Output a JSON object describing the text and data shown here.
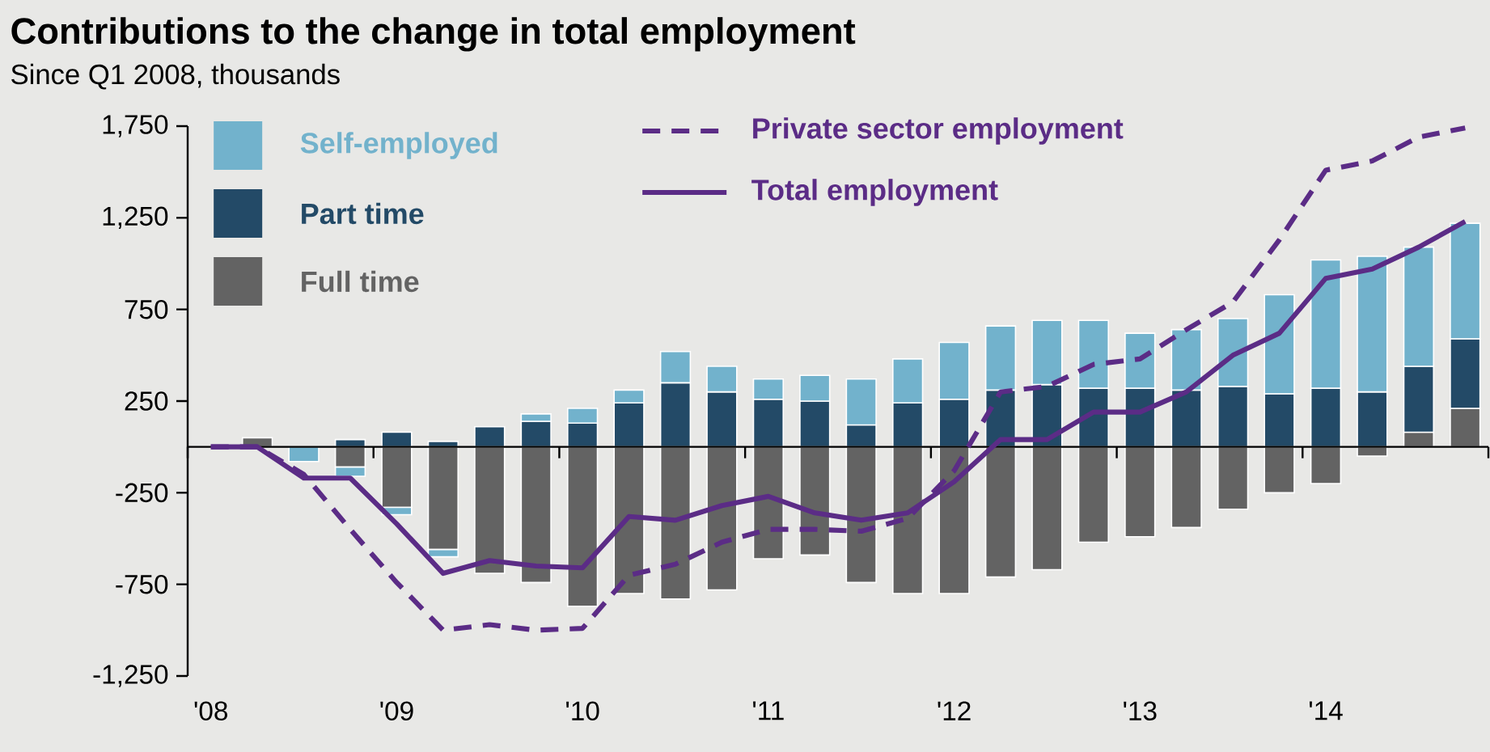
{
  "chart_data": {
    "type": "bar",
    "title": "Contributions to the change in total employment",
    "subtitle": "Since Q1 2008, thousands",
    "stacked": true,
    "legend": "top left",
    "categories": [
      "'08",
      null,
      null,
      null,
      "'09",
      null,
      null,
      null,
      "'10",
      null,
      null,
      null,
      "'11",
      null,
      null,
      null,
      "'12",
      null,
      null,
      null,
      "'13",
      null,
      null,
      null,
      "'14",
      null,
      null,
      null
    ],
    "ylim": [
      -1250,
      1750
    ],
    "yticks": [
      {
        "value": 1750,
        "label": "1,750"
      },
      {
        "value": 1250,
        "label": "1,250"
      },
      750,
      250,
      -250,
      -750,
      {
        "value": -1250,
        "label": "-1,250"
      }
    ],
    "series": [
      {
        "name": "Full time",
        "color": "#636363",
        "values": [
          0,
          50,
          0,
          -110,
          -330,
          -560,
          -690,
          -740,
          -870,
          -800,
          -830,
          -780,
          -610,
          -590,
          -740,
          -800,
          -800,
          -710,
          -670,
          -520,
          -490,
          -440,
          -340,
          -250,
          -200,
          -50,
          80,
          210
        ]
      },
      {
        "name": "Part time",
        "color": "#234a67",
        "values": [
          0,
          0,
          0,
          40,
          80,
          30,
          110,
          140,
          130,
          240,
          350,
          300,
          260,
          250,
          120,
          240,
          260,
          310,
          340,
          320,
          320,
          310,
          330,
          290,
          320,
          300,
          360,
          380
        ]
      },
      {
        "name": "Self-employed",
        "color": "#72b2cc",
        "values": [
          0,
          0,
          -80,
          -50,
          -40,
          -40,
          0,
          40,
          80,
          70,
          170,
          140,
          110,
          140,
          250,
          240,
          310,
          350,
          350,
          370,
          300,
          330,
          370,
          540,
          700,
          740,
          650,
          630
        ]
      },
      {
        "name": "Private sector employment",
        "type": "line",
        "line_style": "dashed",
        "color": "#5b2c86",
        "values": [
          0,
          0,
          -150,
          -450,
          -740,
          -1000,
          -970,
          -1000,
          -990,
          -700,
          -640,
          -520,
          -450,
          -450,
          -460,
          -390,
          -130,
          300,
          330,
          450,
          480,
          640,
          790,
          1130,
          1510,
          1560,
          1690,
          1740
        ]
      },
      {
        "name": "Total employment",
        "type": "line",
        "line_style": "solid",
        "color": "#5b2c86",
        "values": [
          0,
          0,
          -170,
          -170,
          -420,
          -690,
          -620,
          -650,
          -660,
          -380,
          -400,
          -320,
          -270,
          -360,
          -400,
          -360,
          -190,
          40,
          40,
          190,
          190,
          300,
          500,
          620,
          920,
          970,
          1090,
          1230
        ]
      }
    ]
  }
}
